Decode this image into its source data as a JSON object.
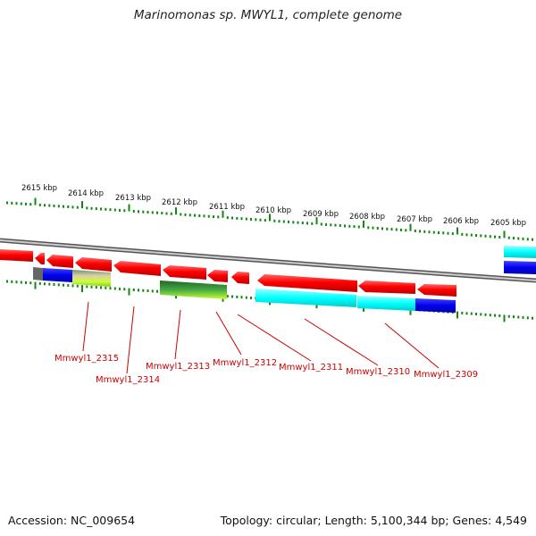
{
  "title": "Marinomonas sp. MWYL1, complete genome",
  "footer": {
    "accession": "Accession: NC_009654",
    "topology": "Topology: circular; Length: 5,100,344 bp; Genes: 4,549"
  },
  "scale_labels": [
    "2615 kbp",
    "2614 kbp",
    "2613 kbp",
    "2612 kbp",
    "2611 kbp",
    "2610 kbp",
    "2609 kbp",
    "2608 kbp",
    "2607 kbp",
    "2606 kbp",
    "2605 kbp"
  ],
  "gene_labels": [
    "Mmwyl1_2315",
    "Mmwyl1_2314",
    "Mmwyl1_2313",
    "Mmwyl1_2312",
    "Mmwyl1_2311",
    "Mmwyl1_2310",
    "Mmwyl1_2309"
  ],
  "colors": {
    "gene": "#ee0000",
    "backbone": "#888888",
    "tick": "#118811",
    "label": "#cc0000",
    "cyan": "#00ffff",
    "blue": "#0000ee",
    "green": "#339933",
    "lime": "#ccff33"
  }
}
